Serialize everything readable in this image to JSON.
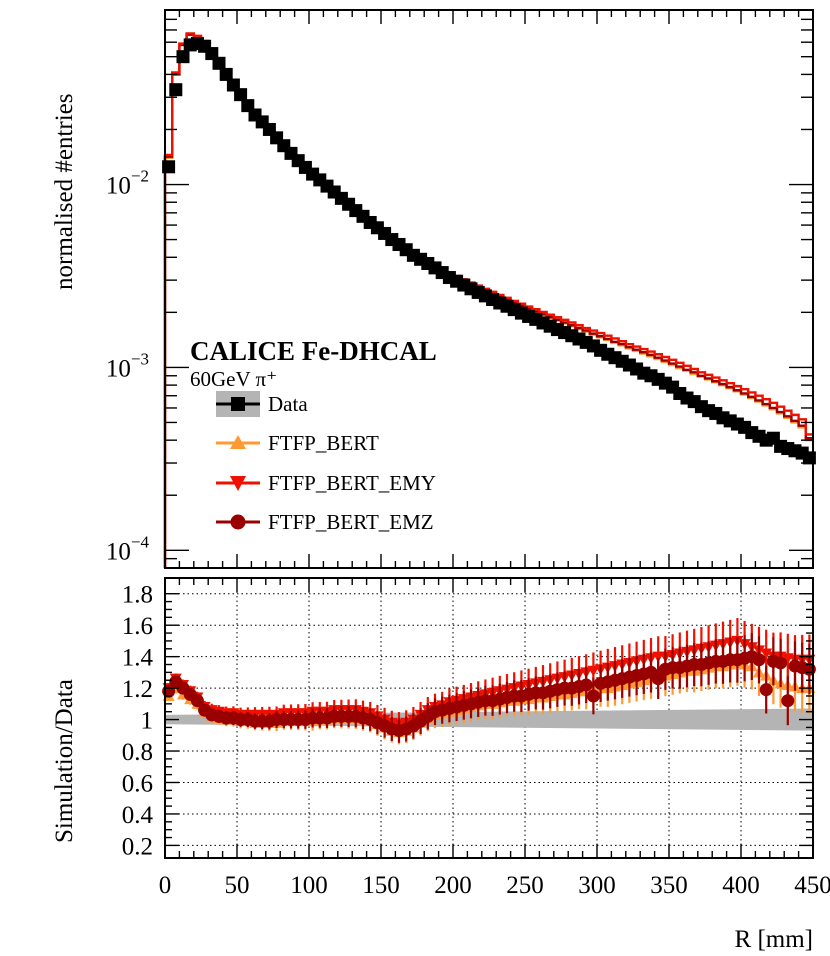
{
  "chart_data": [
    {
      "type": "line",
      "panel": "main",
      "yscale": "log",
      "ylabel": "normalised #entries",
      "xlim": [
        0,
        450
      ],
      "ylim": [
        8e-05,
        0.09
      ],
      "ytick_labels": [
        {
          "value": 0.01,
          "base": "10",
          "exp": "−2"
        },
        {
          "value": 0.001,
          "base": "10",
          "exp": "−3"
        },
        {
          "value": 0.0001,
          "base": "10",
          "exp": "−4"
        }
      ],
      "experiment": "CALICE Fe-DHCAL",
      "beam_label": "60GeV π⁺",
      "legend": [
        {
          "key": "data",
          "label": "Data",
          "color": "#000000",
          "marker": "square",
          "band": "#b4b4b4"
        },
        {
          "key": "ftfp_bert",
          "label": "FTFP_BERT",
          "color": "#ff9933",
          "marker": "triangle-up"
        },
        {
          "key": "ftfp_bert_emy",
          "label": "FTFP_BERT_EMY",
          "color": "#ee1100",
          "marker": "triangle-down"
        },
        {
          "key": "ftfp_bert_emz",
          "label": "FTFP_BERT_EMZ",
          "color": "#990000",
          "marker": "circle"
        }
      ],
      "x": [
        5,
        10,
        15,
        20,
        25,
        30,
        35,
        40,
        45,
        50,
        55,
        60,
        65,
        70,
        75,
        80,
        85,
        90,
        95,
        100,
        105,
        110,
        115,
        120,
        125,
        130,
        135,
        140,
        145,
        150,
        155,
        160,
        165,
        170,
        175,
        180,
        185,
        190,
        195,
        200,
        205,
        210,
        215,
        220,
        225,
        230,
        235,
        240,
        245,
        250,
        255,
        260,
        265,
        270,
        275,
        280,
        285,
        290,
        295,
        300,
        305,
        310,
        315,
        320,
        325,
        330,
        335,
        340,
        345,
        350,
        355,
        360,
        365,
        370,
        375,
        380,
        385,
        390,
        395,
        400,
        405,
        410,
        415,
        420,
        425,
        430,
        435,
        440,
        445,
        450
      ],
      "series": [
        {
          "name": "Data",
          "values": [
            0.0125,
            0.033,
            0.05,
            0.058,
            0.059,
            0.057,
            0.052,
            0.046,
            0.04,
            0.035,
            0.031,
            0.027,
            0.024,
            0.022,
            0.02,
            0.018,
            0.0163,
            0.0148,
            0.0135,
            0.0124,
            0.0114,
            0.0106,
            0.0098,
            0.0091,
            0.0084,
            0.0078,
            0.0072,
            0.0067,
            0.0062,
            0.0058,
            0.0054,
            0.005,
            0.0047,
            0.0044,
            0.0041,
            0.0039,
            0.0037,
            0.0035,
            0.0033,
            0.0031,
            0.00296,
            0.00282,
            0.00269,
            0.00257,
            0.00246,
            0.00235,
            0.00225,
            0.00216,
            0.00207,
            0.00198,
            0.0019,
            0.00183,
            0.00175,
            0.00168,
            0.00161,
            0.00155,
            0.00149,
            0.00143,
            0.00137,
            0.00131,
            0.00124,
            0.00118,
            0.00113,
            0.00108,
            0.00103,
            0.00098,
            0.00093,
            0.0009,
            0.00086,
            0.00082,
            0.00078,
            0.00072,
            0.00068,
            0.00065,
            0.00061,
            0.00058,
            0.00056,
            0.00053,
            0.00051,
            0.00049,
            0.00047,
            0.00044,
            0.00042,
            0.0004,
            0.00041,
            0.00037,
            0.00036,
            0.00035,
            0.00034,
            0.00032
          ]
        },
        {
          "name": "FTFP_BERT",
          "values": [
            0.014,
            0.04,
            0.058,
            0.066,
            0.064,
            0.06,
            0.053,
            0.046,
            0.04,
            0.035,
            0.031,
            0.027,
            0.024,
            0.022,
            0.02,
            0.018,
            0.0163,
            0.0148,
            0.0135,
            0.0124,
            0.0114,
            0.0106,
            0.0098,
            0.0091,
            0.0084,
            0.0078,
            0.0072,
            0.0067,
            0.0062,
            0.0058,
            0.0054,
            0.005,
            0.0047,
            0.0044,
            0.0041,
            0.0039,
            0.0037,
            0.0035,
            0.0034,
            0.0032,
            0.00307,
            0.00294,
            0.00282,
            0.00271,
            0.0026,
            0.0025,
            0.00241,
            0.00232,
            0.00223,
            0.00215,
            0.00207,
            0.002,
            0.00193,
            0.00186,
            0.0018,
            0.00174,
            0.00168,
            0.00162,
            0.00157,
            0.00151,
            0.00146,
            0.00141,
            0.00136,
            0.00132,
            0.00127,
            0.00123,
            0.00119,
            0.00115,
            0.00111,
            0.00107,
            0.00103,
            0.00099,
            0.00096,
            0.00092,
            0.00089,
            0.00086,
            0.00083,
            0.0008,
            0.00077,
            0.00074,
            0.00071,
            0.00068,
            0.00065,
            0.00062,
            0.00059,
            0.00056,
            0.00053,
            0.0005,
            0.00047,
            0.0004
          ]
        },
        {
          "name": "FTFP_BERT_EMY",
          "values": [
            0.0145,
            0.041,
            0.059,
            0.067,
            0.065,
            0.061,
            0.054,
            0.047,
            0.04,
            0.035,
            0.031,
            0.027,
            0.024,
            0.022,
            0.02,
            0.018,
            0.0163,
            0.0148,
            0.0135,
            0.0124,
            0.0114,
            0.0106,
            0.0098,
            0.0091,
            0.0084,
            0.0078,
            0.0072,
            0.0067,
            0.0062,
            0.0058,
            0.0054,
            0.005,
            0.0047,
            0.0044,
            0.0041,
            0.0039,
            0.0037,
            0.0035,
            0.0034,
            0.0033,
            0.00316,
            0.00303,
            0.00291,
            0.0028,
            0.00269,
            0.00259,
            0.00249,
            0.0024,
            0.00231,
            0.00223,
            0.00215,
            0.00208,
            0.00201,
            0.00194,
            0.00188,
            0.00182,
            0.00176,
            0.0017,
            0.00164,
            0.00159,
            0.00154,
            0.00149,
            0.00144,
            0.00139,
            0.00134,
            0.0013,
            0.00126,
            0.00122,
            0.00118,
            0.00114,
            0.0011,
            0.00106,
            0.00102,
            0.00098,
            0.00094,
            0.00091,
            0.00088,
            0.00085,
            0.00082,
            0.00079,
            0.00076,
            0.00073,
            0.0007,
            0.00067,
            0.00064,
            0.00061,
            0.00058,
            0.00055,
            0.00052,
            0.00043
          ]
        },
        {
          "name": "FTFP_BERT_EMZ",
          "values": [
            0.0142,
            0.04,
            0.058,
            0.066,
            0.064,
            0.06,
            0.053,
            0.046,
            0.04,
            0.035,
            0.031,
            0.027,
            0.024,
            0.022,
            0.02,
            0.018,
            0.0163,
            0.0148,
            0.0135,
            0.0124,
            0.0114,
            0.0106,
            0.0098,
            0.0091,
            0.0084,
            0.0078,
            0.0072,
            0.0067,
            0.0062,
            0.0058,
            0.0054,
            0.005,
            0.0047,
            0.0044,
            0.0041,
            0.0039,
            0.0037,
            0.0035,
            0.0034,
            0.0032,
            0.0031,
            0.00297,
            0.00285,
            0.00274,
            0.00263,
            0.00253,
            0.00243,
            0.00234,
            0.00225,
            0.00217,
            0.00209,
            0.00202,
            0.00195,
            0.00188,
            0.00182,
            0.00176,
            0.0017,
            0.00164,
            0.00159,
            0.00153,
            0.00148,
            0.00143,
            0.00138,
            0.00134,
            0.00129,
            0.00125,
            0.00121,
            0.00117,
            0.00113,
            0.00109,
            0.00105,
            0.00101,
            0.00097,
            0.00094,
            0.0009,
            0.00087,
            0.00084,
            0.00081,
            0.00078,
            0.00075,
            0.00072,
            0.00069,
            0.00066,
            0.00063,
            0.0006,
            0.00057,
            0.00054,
            0.00051,
            0.00048,
            0.00041
          ]
        }
      ]
    },
    {
      "type": "scatter",
      "panel": "ratio",
      "ylabel": "Simulation/Data",
      "xlabel": "R [mm]",
      "xlim": [
        0,
        450
      ],
      "ylim": [
        0.12,
        1.9
      ],
      "xticks": [
        0,
        50,
        100,
        150,
        200,
        250,
        300,
        350,
        400,
        450
      ],
      "yticks": [
        0.2,
        0.4,
        0.6,
        0.8,
        1,
        1.2,
        1.4,
        1.6,
        1.8
      ],
      "grid": true,
      "x": [
        5,
        10,
        15,
        20,
        25,
        30,
        35,
        40,
        45,
        50,
        55,
        60,
        65,
        70,
        75,
        80,
        85,
        90,
        95,
        100,
        105,
        110,
        115,
        120,
        125,
        130,
        135,
        140,
        145,
        150,
        155,
        160,
        165,
        170,
        175,
        180,
        185,
        190,
        195,
        200,
        205,
        210,
        215,
        220,
        225,
        230,
        235,
        240,
        245,
        250,
        255,
        260,
        265,
        270,
        275,
        280,
        285,
        290,
        295,
        300,
        305,
        310,
        315,
        320,
        325,
        330,
        335,
        340,
        345,
        350,
        355,
        360,
        365,
        370,
        375,
        380,
        385,
        390,
        395,
        400,
        405,
        410,
        415,
        420,
        425,
        430,
        435,
        440,
        445,
        450
      ],
      "band": {
        "name": "Data uncertainty",
        "center": 1.0,
        "halfwidth_start": 0.03,
        "halfwidth_end": 0.07
      },
      "series": [
        {
          "name": "FTFP_BERT",
          "values": [
            1.15,
            1.2,
            1.16,
            1.13,
            1.1,
            1.05,
            1.02,
            1.01,
            1.0,
            1.0,
            0.99,
            0.99,
            0.98,
            0.98,
            0.98,
            0.98,
            0.99,
            0.99,
            0.99,
            0.99,
            0.99,
            1.0,
            1.0,
            1.01,
            1.01,
            1.01,
            1.01,
            1.0,
            0.99,
            0.97,
            0.95,
            0.93,
            0.92,
            0.93,
            0.95,
            0.98,
            1.01,
            1.03,
            1.04,
            1.05,
            1.06,
            1.07,
            1.08,
            1.09,
            1.1,
            1.1,
            1.11,
            1.12,
            1.12,
            1.13,
            1.13,
            1.14,
            1.14,
            1.15,
            1.16,
            1.16,
            1.17,
            1.18,
            1.18,
            1.19,
            1.2,
            1.2,
            1.21,
            1.22,
            1.23,
            1.24,
            1.25,
            1.26,
            1.27,
            1.28,
            1.29,
            1.3,
            1.31,
            1.31,
            1.32,
            1.33,
            1.34,
            1.34,
            1.35,
            1.36,
            1.35,
            1.34,
            1.3,
            1.28,
            1.25,
            1.23,
            1.22,
            1.21,
            1.2,
            1.2
          ]
        },
        {
          "name": "FTFP_BERT_EMY",
          "values": [
            1.2,
            1.26,
            1.22,
            1.18,
            1.14,
            1.08,
            1.06,
            1.05,
            1.04,
            1.04,
            1.03,
            1.03,
            1.03,
            1.03,
            1.03,
            1.03,
            1.04,
            1.04,
            1.04,
            1.04,
            1.05,
            1.05,
            1.05,
            1.06,
            1.06,
            1.06,
            1.06,
            1.05,
            1.04,
            1.02,
            1.0,
            0.98,
            0.97,
            0.98,
            1.0,
            1.03,
            1.06,
            1.08,
            1.09,
            1.11,
            1.12,
            1.13,
            1.14,
            1.15,
            1.16,
            1.17,
            1.18,
            1.19,
            1.2,
            1.21,
            1.22,
            1.23,
            1.24,
            1.25,
            1.26,
            1.27,
            1.28,
            1.29,
            1.3,
            1.31,
            1.32,
            1.33,
            1.34,
            1.35,
            1.36,
            1.37,
            1.38,
            1.39,
            1.4,
            1.4,
            1.41,
            1.42,
            1.43,
            1.44,
            1.45,
            1.46,
            1.47,
            1.48,
            1.49,
            1.5,
            1.48,
            1.46,
            1.44,
            1.42,
            1.4,
            1.4,
            1.39,
            1.38,
            1.38,
            1.38
          ]
        },
        {
          "name": "FTFP_BERT_EMZ",
          "values": [
            1.18,
            1.24,
            1.2,
            1.16,
            1.12,
            1.06,
            1.03,
            1.02,
            1.01,
            1.01,
            1.0,
            1.0,
            0.99,
            0.99,
            0.99,
            1.0,
            1.0,
            1.0,
            1.0,
            1.0,
            1.01,
            1.01,
            1.01,
            1.02,
            1.02,
            1.02,
            1.02,
            1.01,
            1.0,
            0.98,
            0.96,
            0.94,
            0.93,
            0.94,
            0.96,
            0.99,
            1.02,
            1.05,
            1.06,
            1.07,
            1.08,
            1.09,
            1.1,
            1.11,
            1.12,
            1.12,
            1.13,
            1.14,
            1.15,
            1.15,
            1.16,
            1.17,
            1.17,
            1.18,
            1.19,
            1.2,
            1.2,
            1.21,
            1.22,
            1.15,
            1.23,
            1.24,
            1.25,
            1.26,
            1.27,
            1.28,
            1.29,
            1.3,
            1.26,
            1.32,
            1.33,
            1.33,
            1.34,
            1.35,
            1.35,
            1.36,
            1.37,
            1.37,
            1.38,
            1.38,
            1.39,
            1.4,
            1.38,
            1.19,
            1.37,
            1.36,
            1.12,
            1.34,
            1.33,
            1.32
          ]
        }
      ]
    }
  ]
}
